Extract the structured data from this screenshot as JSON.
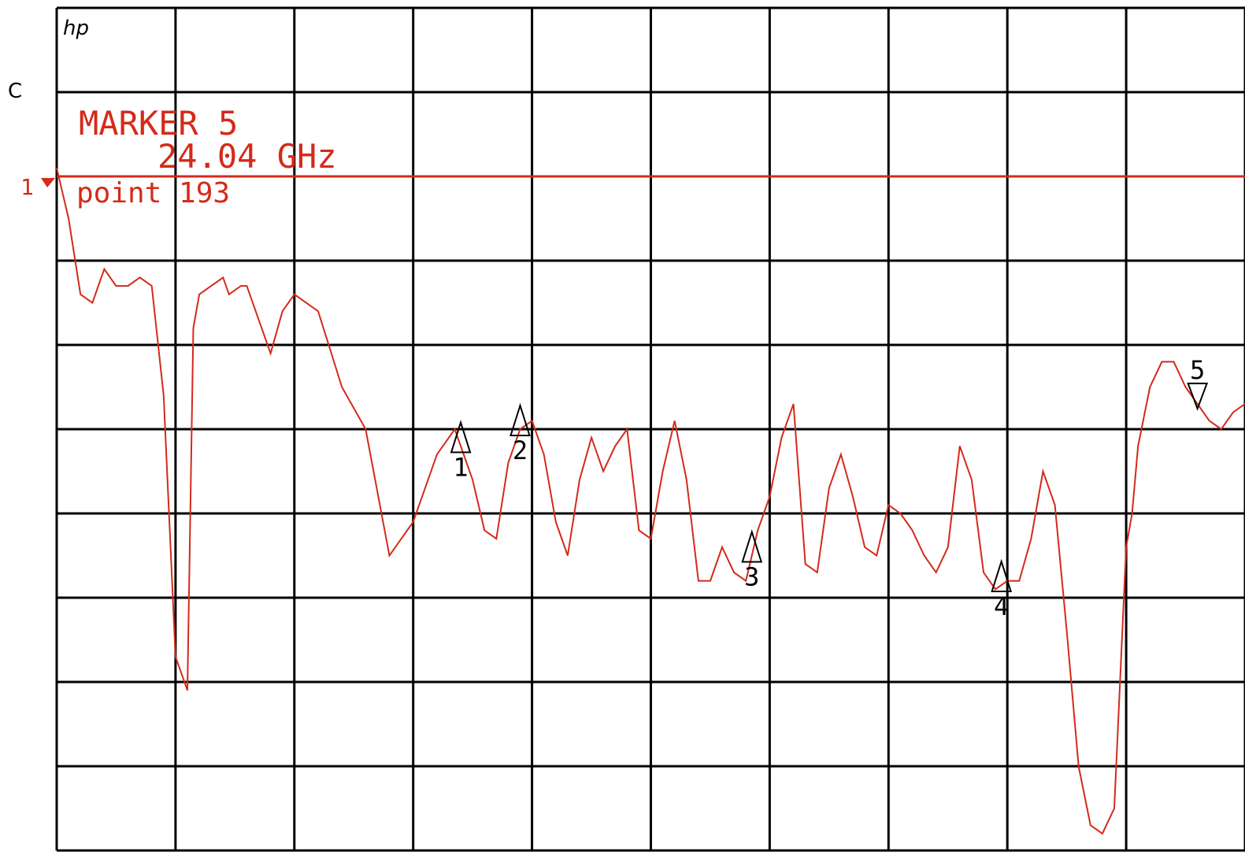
{
  "header": {
    "logo_text": "hp",
    "channel_label": "C",
    "reference_label": "1"
  },
  "readout": {
    "title": "MARKER 5",
    "frequency": "24.04 GHz",
    "point": "point  193"
  },
  "colors": {
    "trace": "#d42a1a",
    "grid": "#000000",
    "marker": "#000000",
    "background": "#ffffff"
  },
  "chart_data": {
    "type": "line",
    "title": "",
    "xlabel": "",
    "ylabel": "",
    "grid": true,
    "xlim": [
      0,
      10
    ],
    "ylim": [
      -10,
      0
    ],
    "reference_level": -2,
    "series": [
      {
        "x": [
          0.0,
          0.1,
          0.2,
          0.3,
          0.4,
          0.5,
          0.6,
          0.7,
          0.8,
          0.9,
          1.0,
          1.1,
          1.15,
          1.2,
          1.3,
          1.4,
          1.45,
          1.55,
          1.6,
          1.7,
          1.8,
          1.9,
          2.0,
          2.2,
          2.4,
          2.6,
          2.8,
          3.0,
          3.2,
          3.35,
          3.5,
          3.6,
          3.7,
          3.8,
          3.9,
          4.0,
          4.1,
          4.2,
          4.3,
          4.4,
          4.5,
          4.6,
          4.7,
          4.8,
          4.9,
          5.0,
          5.1,
          5.2,
          5.3,
          5.4,
          5.5,
          5.6,
          5.7,
          5.8,
          5.9,
          6.0,
          6.1,
          6.2,
          6.3,
          6.4,
          6.5,
          6.6,
          6.7,
          6.8,
          6.9,
          7.0,
          7.1,
          7.2,
          7.3,
          7.4,
          7.5,
          7.6,
          7.7,
          7.8,
          7.9,
          8.0,
          8.1,
          8.2,
          8.3,
          8.4,
          8.5,
          8.6,
          8.7,
          8.8,
          8.9,
          9.0,
          9.05,
          9.1,
          9.2,
          9.3,
          9.4,
          9.5,
          9.6,
          9.7,
          9.8,
          9.9,
          10.0
        ],
        "values": [
          -1.9,
          -2.5,
          -3.4,
          -3.5,
          -3.1,
          -3.3,
          -3.3,
          -3.2,
          -3.3,
          -4.6,
          -7.7,
          -8.1,
          -3.8,
          -3.4,
          -3.3,
          -3.2,
          -3.4,
          -3.3,
          -3.3,
          -3.7,
          -4.1,
          -3.6,
          -3.4,
          -3.6,
          -4.5,
          -5.0,
          -6.5,
          -6.1,
          -5.3,
          -5.0,
          -5.6,
          -6.2,
          -6.3,
          -5.4,
          -5.0,
          -4.9,
          -5.3,
          -6.1,
          -6.5,
          -5.6,
          -5.1,
          -5.5,
          -5.2,
          -5.0,
          -6.2,
          -6.3,
          -5.5,
          -4.9,
          -5.6,
          -6.8,
          -6.8,
          -6.4,
          -6.7,
          -6.8,
          -6.2,
          -5.8,
          -5.1,
          -4.7,
          -6.6,
          -6.7,
          -5.7,
          -5.3,
          -5.8,
          -6.4,
          -6.5,
          -5.9,
          -6.0,
          -6.2,
          -6.5,
          -6.7,
          -6.4,
          -5.2,
          -5.6,
          -6.7,
          -6.9,
          -6.8,
          -6.8,
          -6.3,
          -5.5,
          -5.9,
          -7.4,
          -9.0,
          -9.7,
          -9.8,
          -9.5,
          -6.4,
          -6.0,
          -5.2,
          -4.5,
          -4.2,
          -4.2,
          -4.5,
          -4.7,
          -4.9,
          -5.0,
          -4.8,
          -4.7
        ]
      }
    ],
    "markers": [
      {
        "label": "1",
        "x": 3.4,
        "pointing": "up"
      },
      {
        "label": "2",
        "x": 3.9,
        "pointing": "up"
      },
      {
        "label": "3",
        "x": 5.85,
        "pointing": "up"
      },
      {
        "label": "4",
        "x": 7.95,
        "pointing": "up"
      },
      {
        "label": "5",
        "x": 9.6,
        "pointing": "down"
      }
    ]
  }
}
